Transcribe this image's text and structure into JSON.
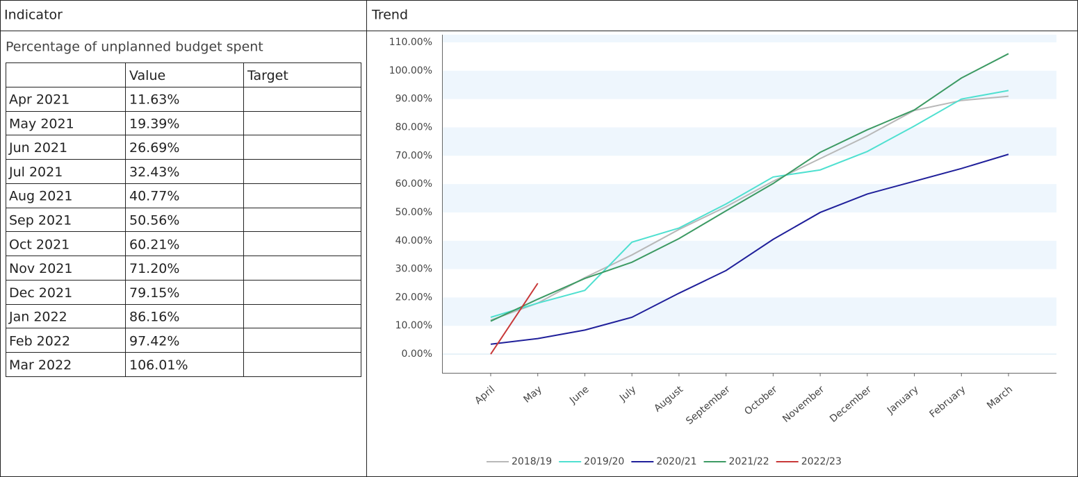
{
  "header": {
    "indicator": "Indicator",
    "trend": "Trend"
  },
  "indicator_name": "Percentage of unplanned budget spent",
  "table": {
    "columns": [
      "Value",
      "Target"
    ],
    "rows": [
      [
        "Apr 2021",
        "11.63%"
      ],
      [
        "May 2021",
        "19.39%"
      ],
      [
        "Jun 2021",
        "26.69%"
      ],
      [
        "Jul 2021",
        "32.43%"
      ],
      [
        "Aug 2021",
        "40.77%"
      ],
      [
        "Sep 2021",
        "50.56%"
      ],
      [
        "Oct 2021",
        "60.21%"
      ],
      [
        "Nov 2021",
        "71.20%"
      ],
      [
        "Dec 2021",
        "79.15%"
      ],
      [
        "Jan 2022",
        "86.16%"
      ],
      [
        "Feb 2022",
        "97.42%"
      ],
      [
        "Mar 2022",
        "106.01%"
      ]
    ]
  },
  "chart_data": {
    "type": "line",
    "categories": [
      "April",
      "May",
      "June",
      "July",
      "August",
      "September",
      "October",
      "November",
      "December",
      "January",
      "February",
      "March"
    ],
    "series": [
      {
        "name": "2018/19",
        "color": "#b8b8b8",
        "values": [
          12,
          18,
          27,
          35,
          44,
          52,
          61,
          69,
          77,
          86,
          89.5,
          91
        ]
      },
      {
        "name": "2019/20",
        "color": "#4fe0d0",
        "values": [
          13,
          18,
          22.5,
          39.5,
          44.5,
          53,
          62.5,
          65,
          71.5,
          80.5,
          90,
          93
        ]
      },
      {
        "name": "2020/21",
        "color": "#1f1f9a",
        "values": [
          3.5,
          5.5,
          8.5,
          13,
          21.5,
          29.5,
          40.5,
          50,
          56.5,
          61,
          65.5,
          70.5
        ]
      },
      {
        "name": "2021/22",
        "color": "#3c9a63",
        "values": [
          11.63,
          19.39,
          26.69,
          32.43,
          40.77,
          50.56,
          60.21,
          71.2,
          79.15,
          86.16,
          97.42,
          106.01
        ]
      },
      {
        "name": "2022/23",
        "color": "#c83838",
        "values": [
          0,
          25,
          null,
          null,
          null,
          null,
          null,
          null,
          null,
          null,
          null,
          null
        ]
      }
    ],
    "ylim": [
      -6.6,
      112.7
    ],
    "yticks": [
      {
        "value": 0,
        "label": "0.00%"
      },
      {
        "value": 10,
        "label": "10.00%"
      },
      {
        "value": 20,
        "label": "20.00%"
      },
      {
        "value": 30,
        "label": "30.00%"
      },
      {
        "value": 40,
        "label": "40.00%"
      },
      {
        "value": 50,
        "label": "50.00%"
      },
      {
        "value": 60,
        "label": "60.00%"
      },
      {
        "value": 70,
        "label": "70.00%"
      },
      {
        "value": 80,
        "label": "80.00%"
      },
      {
        "value": 90,
        "label": "90.00%"
      },
      {
        "value": 100,
        "label": "100.00%"
      },
      {
        "value": 110,
        "label": "110.00%"
      }
    ],
    "band_color": "#eef6fd",
    "legend": "bottom"
  }
}
